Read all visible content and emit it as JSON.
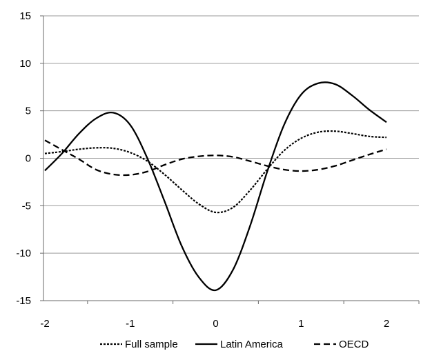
{
  "chart_data": {
    "type": "line",
    "title": "",
    "xlabel": "",
    "ylabel": "",
    "xlim": [
      -2,
      2
    ],
    "ylim": [
      -15,
      15
    ],
    "x_ticks": [
      "-2",
      "-1",
      "0",
      "1",
      "2"
    ],
    "y_ticks": [
      "15",
      "10",
      "5",
      "0",
      "-5",
      "-10",
      "-15"
    ],
    "grid": "horizontal",
    "legend": "bottom",
    "series": [
      {
        "name": "Full sample",
        "style": "dotted",
        "color": "#000000",
        "points": [
          [
            -2.0,
            0.5
          ],
          [
            -1.8,
            0.7
          ],
          [
            -1.6,
            0.95
          ],
          [
            -1.4,
            1.1
          ],
          [
            -1.2,
            1.05
          ],
          [
            -1.0,
            0.6
          ],
          [
            -0.8,
            -0.3
          ],
          [
            -0.6,
            -1.7
          ],
          [
            -0.4,
            -3.3
          ],
          [
            -0.2,
            -4.8
          ],
          [
            0.0,
            -5.7
          ],
          [
            0.2,
            -5.2
          ],
          [
            0.4,
            -3.4
          ],
          [
            0.6,
            -1.2
          ],
          [
            0.8,
            0.8
          ],
          [
            1.0,
            2.1
          ],
          [
            1.2,
            2.75
          ],
          [
            1.4,
            2.85
          ],
          [
            1.6,
            2.6
          ],
          [
            1.8,
            2.3
          ],
          [
            2.0,
            2.2
          ]
        ]
      },
      {
        "name": "Latin America",
        "style": "solid",
        "color": "#000000",
        "points": [
          [
            -2.0,
            -1.3
          ],
          [
            -1.8,
            0.5
          ],
          [
            -1.6,
            2.6
          ],
          [
            -1.4,
            4.2
          ],
          [
            -1.2,
            4.8
          ],
          [
            -1.0,
            3.5
          ],
          [
            -0.8,
            0.0
          ],
          [
            -0.6,
            -4.5
          ],
          [
            -0.4,
            -9.2
          ],
          [
            -0.2,
            -12.5
          ],
          [
            0.0,
            -13.9
          ],
          [
            0.2,
            -11.8
          ],
          [
            0.4,
            -7.2
          ],
          [
            0.6,
            -1.5
          ],
          [
            0.8,
            3.5
          ],
          [
            1.0,
            6.7
          ],
          [
            1.2,
            7.9
          ],
          [
            1.4,
            7.8
          ],
          [
            1.6,
            6.6
          ],
          [
            1.8,
            5.1
          ],
          [
            2.0,
            3.8
          ]
        ]
      },
      {
        "name": "OECD",
        "style": "dashed",
        "color": "#000000",
        "points": [
          [
            -2.0,
            1.9
          ],
          [
            -1.8,
            0.9
          ],
          [
            -1.6,
            -0.1
          ],
          [
            -1.4,
            -1.2
          ],
          [
            -1.2,
            -1.7
          ],
          [
            -1.0,
            -1.75
          ],
          [
            -0.8,
            -1.4
          ],
          [
            -0.6,
            -0.7
          ],
          [
            -0.4,
            -0.1
          ],
          [
            -0.2,
            0.2
          ],
          [
            0.0,
            0.3
          ],
          [
            0.2,
            0.15
          ],
          [
            0.4,
            -0.3
          ],
          [
            0.6,
            -0.8
          ],
          [
            0.8,
            -1.2
          ],
          [
            1.0,
            -1.35
          ],
          [
            1.2,
            -1.2
          ],
          [
            1.4,
            -0.8
          ],
          [
            1.6,
            -0.2
          ],
          [
            1.8,
            0.4
          ],
          [
            2.0,
            0.95
          ]
        ]
      }
    ]
  }
}
